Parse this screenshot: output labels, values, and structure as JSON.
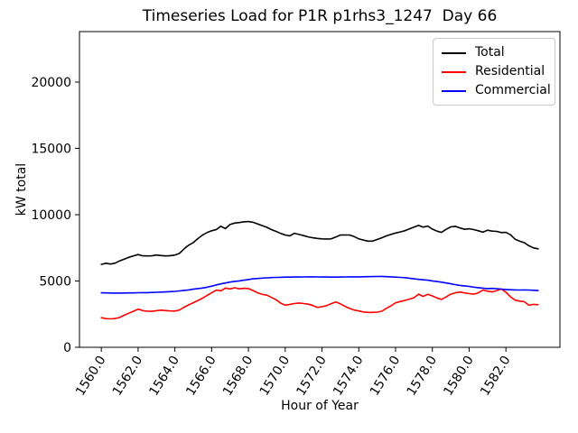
{
  "chart_data": {
    "type": "line",
    "title": "Timeseries Load for P1R p1rhs3_1247  Day 66",
    "xlabel": "Hour of Year",
    "ylabel": "kW total",
    "grid": false,
    "legend_position": "upper right",
    "xlim": [
      1558.8125,
      1584.9375
    ],
    "ylim": [
      0,
      23810
    ],
    "x_start": 1560.0,
    "x_step": 0.25,
    "xticks": [
      {
        "value": 1560,
        "label": "1560.0"
      },
      {
        "value": 1562,
        "label": "1562.0"
      },
      {
        "value": 1564,
        "label": "1564.0"
      },
      {
        "value": 1566,
        "label": "1566.0"
      },
      {
        "value": 1568,
        "label": "1568.0"
      },
      {
        "value": 1570,
        "label": "1570.0"
      },
      {
        "value": 1572,
        "label": "1572.0"
      },
      {
        "value": 1574,
        "label": "1574.0"
      },
      {
        "value": 1576,
        "label": "1576.0"
      },
      {
        "value": 1578,
        "label": "1578.0"
      },
      {
        "value": 1580,
        "label": "1580.0"
      },
      {
        "value": 1582,
        "label": "1582.0"
      }
    ],
    "yticks": [
      {
        "value": 0,
        "label": "0"
      },
      {
        "value": 5000,
        "label": "5000"
      },
      {
        "value": 10000,
        "label": "10000"
      },
      {
        "value": 15000,
        "label": "15000"
      },
      {
        "value": 20000,
        "label": "20000"
      }
    ],
    "series": [
      {
        "name": "Total",
        "color": "#000000",
        "values": [
          6250,
          6340,
          6280,
          6350,
          6520,
          6650,
          6790,
          6900,
          6990,
          6900,
          6890,
          6900,
          6960,
          6920,
          6890,
          6910,
          6950,
          7080,
          7420,
          7700,
          7900,
          8200,
          8460,
          8650,
          8790,
          8880,
          9130,
          8950,
          9260,
          9370,
          9410,
          9460,
          9480,
          9430,
          9300,
          9180,
          9050,
          8880,
          8740,
          8590,
          8470,
          8400,
          8600,
          8510,
          8420,
          8330,
          8260,
          8210,
          8180,
          8170,
          8180,
          8310,
          8470,
          8470,
          8470,
          8350,
          8180,
          8090,
          8010,
          8010,
          8130,
          8260,
          8400,
          8510,
          8620,
          8700,
          8790,
          8930,
          9070,
          9190,
          9060,
          9140,
          8920,
          8760,
          8670,
          8900,
          9080,
          9120,
          9000,
          8900,
          8940,
          8880,
          8790,
          8680,
          8830,
          8760,
          8740,
          8650,
          8670,
          8480,
          8150,
          8000,
          7890,
          7660,
          7500,
          7430
        ]
      },
      {
        "name": "Residential",
        "color": "#ff0000",
        "values": [
          2230,
          2160,
          2140,
          2170,
          2250,
          2420,
          2570,
          2720,
          2880,
          2770,
          2720,
          2715,
          2760,
          2800,
          2770,
          2740,
          2735,
          2810,
          3020,
          3200,
          3360,
          3530,
          3700,
          3910,
          4110,
          4310,
          4260,
          4470,
          4400,
          4490,
          4410,
          4450,
          4430,
          4280,
          4110,
          3990,
          3930,
          3760,
          3590,
          3330,
          3180,
          3240,
          3300,
          3340,
          3300,
          3250,
          3150,
          3010,
          3060,
          3140,
          3290,
          3420,
          3270,
          3090,
          2930,
          2810,
          2740,
          2670,
          2630,
          2630,
          2650,
          2720,
          2940,
          3120,
          3360,
          3450,
          3540,
          3630,
          3740,
          4010,
          3840,
          4000,
          3880,
          3720,
          3610,
          3800,
          4010,
          4110,
          4170,
          4100,
          4050,
          4010,
          4110,
          4320,
          4230,
          4180,
          4280,
          4400,
          4150,
          3800,
          3560,
          3480,
          3440,
          3170,
          3240,
          3210
        ]
      },
      {
        "name": "Commercial",
        "color": "#0000ff",
        "values": [
          4110,
          4100,
          4095,
          4090,
          4090,
          4095,
          4100,
          4105,
          4115,
          4120,
          4125,
          4135,
          4150,
          4165,
          4180,
          4200,
          4220,
          4250,
          4290,
          4330,
          4380,
          4430,
          4470,
          4530,
          4610,
          4700,
          4780,
          4850,
          4920,
          4970,
          5010,
          5060,
          5110,
          5160,
          5190,
          5220,
          5240,
          5260,
          5270,
          5280,
          5290,
          5295,
          5300,
          5300,
          5305,
          5310,
          5310,
          5305,
          5300,
          5300,
          5295,
          5295,
          5300,
          5305,
          5310,
          5310,
          5315,
          5320,
          5330,
          5335,
          5340,
          5345,
          5330,
          5310,
          5290,
          5270,
          5250,
          5210,
          5160,
          5120,
          5090,
          5060,
          5010,
          4960,
          4910,
          4850,
          4790,
          4720,
          4670,
          4630,
          4590,
          4540,
          4500,
          4460,
          4430,
          4440,
          4420,
          4390,
          4360,
          4340,
          4330,
          4320,
          4330,
          4320,
          4300,
          4280
        ]
      }
    ]
  }
}
